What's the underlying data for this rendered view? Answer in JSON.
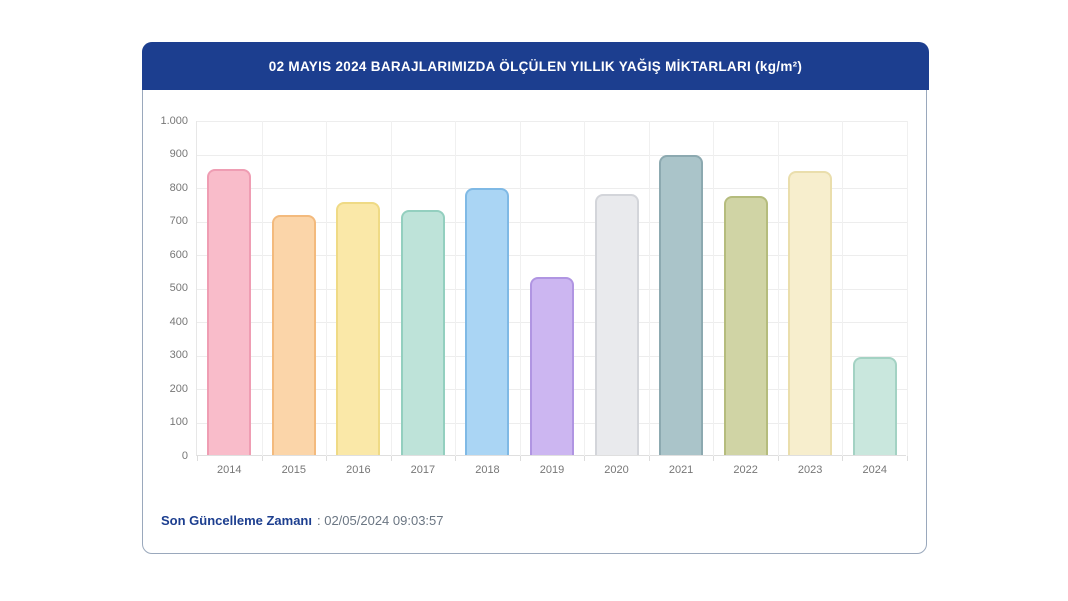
{
  "header": {
    "title": "02 MAYIS 2024 BARAJLARIMIZDA ÖLÇÜLEN YILLIK YAĞIŞ MİKTARLARI (kg/m²)"
  },
  "footer": {
    "label": "Son Güncelleme Zamanı",
    "value": ": 02/05/2024 09:03:57"
  },
  "colors": {
    "header_bg": "#1C3E8F",
    "card_border": "#9AA8BC",
    "grid": "#EDEDED",
    "tick_text": "#777777",
    "footer_label": "#1C3E8F",
    "footer_value": "#6B7683"
  },
  "chart_data": {
    "type": "bar",
    "title": "02 MAYIS 2024 BARAJLARIMIZDA ÖLÇÜLEN YILLIK YAĞIŞ MİKTARLARI (kg/m²)",
    "xlabel": "",
    "ylabel": "",
    "categories": [
      "2014",
      "2015",
      "2016",
      "2017",
      "2018",
      "2019",
      "2020",
      "2021",
      "2022",
      "2023",
      "2024"
    ],
    "values": [
      855,
      717,
      756,
      731,
      797,
      531,
      778,
      897,
      774,
      848,
      292
    ],
    "ylim": [
      0,
      1000
    ],
    "grid": true,
    "legend": false,
    "y_ticks": [
      {
        "value": 1000,
        "label": "1.000"
      },
      {
        "value": 900,
        "label": "900"
      },
      {
        "value": 800,
        "label": "800"
      },
      {
        "value": 700,
        "label": "700"
      },
      {
        "value": 600,
        "label": "600"
      },
      {
        "value": 500,
        "label": "500"
      },
      {
        "value": 400,
        "label": "400"
      },
      {
        "value": 300,
        "label": "300"
      },
      {
        "value": 200,
        "label": "200"
      },
      {
        "value": 100,
        "label": "100"
      },
      {
        "value": 0,
        "label": "0"
      }
    ],
    "bar_colors": [
      {
        "fill": "#F9BCCA",
        "border": "#EF9DB3"
      },
      {
        "fill": "#FBD5A9",
        "border": "#F3BA7D"
      },
      {
        "fill": "#FAE8A8",
        "border": "#EFDA85"
      },
      {
        "fill": "#BEE3D9",
        "border": "#93CFBF"
      },
      {
        "fill": "#AAD5F4",
        "border": "#7FB9E5"
      },
      {
        "fill": "#CCB6F1",
        "border": "#B095E2"
      },
      {
        "fill": "#E9EAED",
        "border": "#D3D5DA"
      },
      {
        "fill": "#AAC4C9",
        "border": "#8CA9B0"
      },
      {
        "fill": "#D0D4A5",
        "border": "#B5BC7D"
      },
      {
        "fill": "#F7EECD",
        "border": "#EADEAC"
      },
      {
        "fill": "#C9E7DD",
        "border": "#A3D2C3"
      }
    ]
  }
}
